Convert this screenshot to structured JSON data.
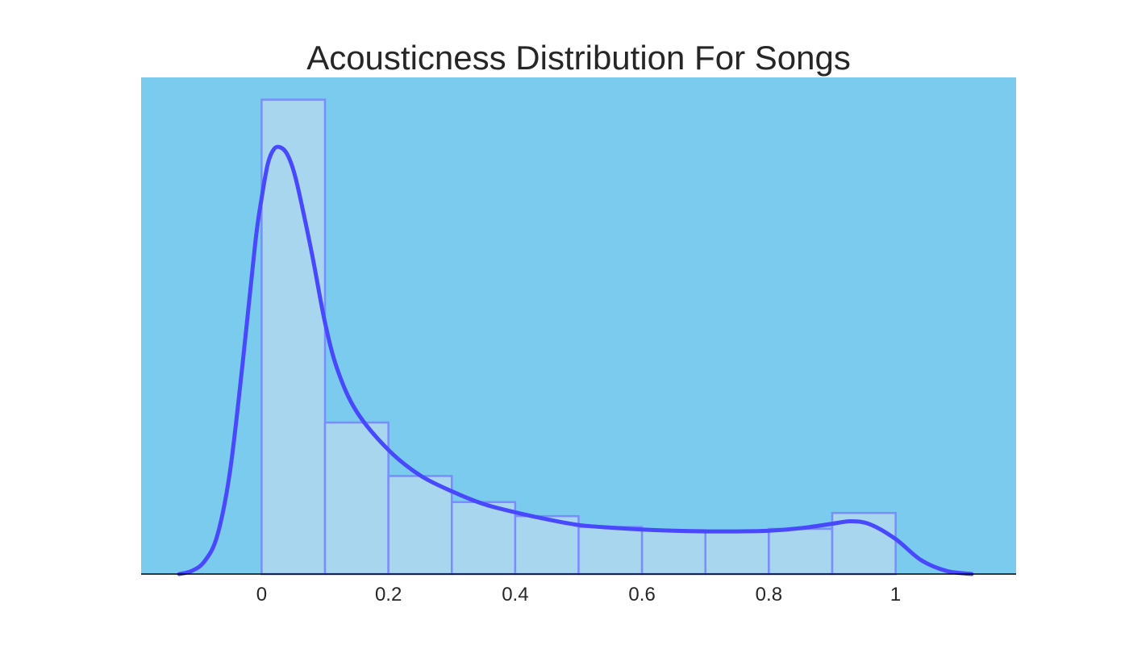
{
  "chart_data": {
    "type": "bar",
    "title": "Acousticness Distribution For Songs",
    "xlabel": "",
    "ylabel": "",
    "bin_edges": [
      0,
      0.1,
      0.2,
      0.3,
      0.4,
      0.5,
      0.6,
      0.7,
      0.8,
      0.9,
      1.0
    ],
    "values": [
      7.45,
      2.38,
      1.54,
      1.13,
      0.91,
      0.74,
      0.69,
      0.67,
      0.71,
      0.96
    ],
    "xlim": [
      -0.19,
      1.19
    ],
    "ylim": [
      0,
      7.8
    ],
    "x_ticks": [
      0,
      0.2,
      0.4,
      0.6,
      0.8,
      1
    ],
    "x_tick_labels": [
      "0",
      "0.2",
      "0.4",
      "0.6",
      "0.8",
      "1"
    ],
    "grid": false,
    "series": [
      {
        "type": "line",
        "x": [
          -0.13,
          -0.11,
          -0.09,
          -0.07,
          -0.05,
          -0.03,
          -0.01,
          0.0,
          0.01,
          0.02,
          0.03,
          0.04,
          0.05,
          0.06,
          0.08,
          0.1,
          0.12,
          0.15,
          0.2,
          0.25,
          0.3,
          0.35,
          0.4,
          0.45,
          0.5,
          0.55,
          0.6,
          0.65,
          0.7,
          0.75,
          0.8,
          0.85,
          0.9,
          0.93,
          0.96,
          1.0,
          1.04,
          1.08,
          1.12
        ],
        "y": [
          0.0,
          0.05,
          0.2,
          0.6,
          1.6,
          3.3,
          5.2,
          5.9,
          6.45,
          6.68,
          6.7,
          6.6,
          6.35,
          5.95,
          5.0,
          3.95,
          3.2,
          2.55,
          1.95,
          1.55,
          1.3,
          1.1,
          0.97,
          0.86,
          0.77,
          0.73,
          0.7,
          0.68,
          0.67,
          0.67,
          0.68,
          0.72,
          0.79,
          0.83,
          0.78,
          0.55,
          0.22,
          0.05,
          0.0
        ]
      }
    ],
    "colors": {
      "background": "#7bcbee",
      "bar_fill": "#a8d6ee",
      "bar_edge": "#7a8cff",
      "kde_line": "#4848ff",
      "axis": "#000000",
      "text": "#262626"
    }
  }
}
